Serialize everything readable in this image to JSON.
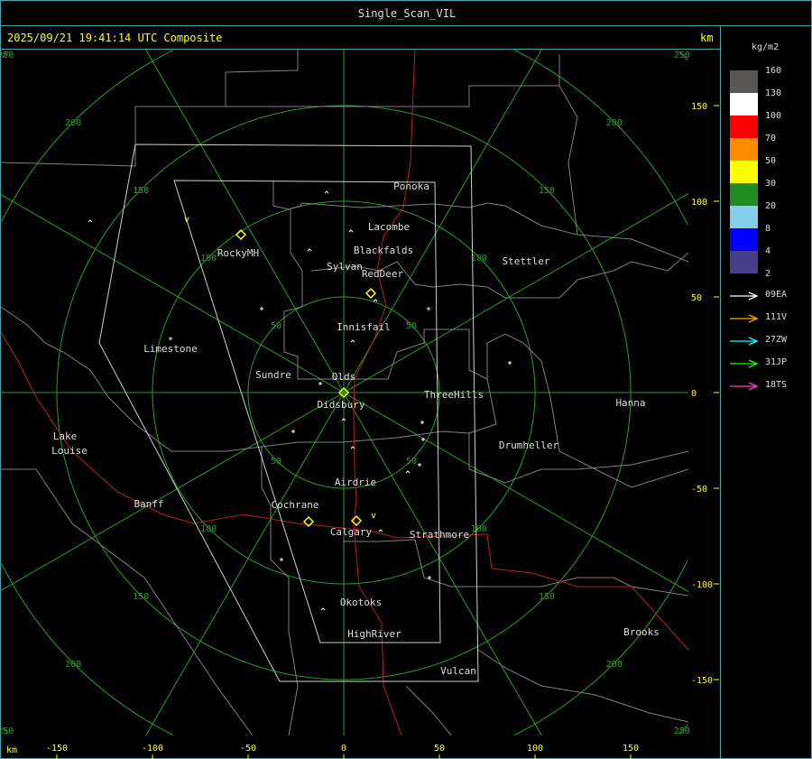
{
  "window": {
    "title": "Single_Scan_VIL"
  },
  "header": {
    "timestamp": "2025/09/21 19:41:14 UTC Composite",
    "unit": "km"
  },
  "axes": {
    "x_unit": "km",
    "x_ticks": [
      "-150",
      "-100",
      "-50",
      "0",
      "50",
      "100",
      "150"
    ],
    "y_ticks": [
      "150",
      "100",
      "50",
      "0",
      "-50",
      "-100",
      "-150"
    ],
    "range_rings": [
      "50",
      "100",
      "150",
      "200",
      "250"
    ]
  },
  "legend": {
    "unit": "kg/m2",
    "scale": [
      {
        "label": "160",
        "color": "#595656"
      },
      {
        "label": "130",
        "color": "#ffffff"
      },
      {
        "label": "100",
        "color": "#ff0000"
      },
      {
        "label": "70",
        "color": "#ff8c00"
      },
      {
        "label": "50",
        "color": "#ffff00"
      },
      {
        "label": "30",
        "color": "#228b22"
      },
      {
        "label": "20",
        "color": "#87ceeb"
      },
      {
        "label": "8",
        "color": "#0000ff"
      },
      {
        "label": "4",
        "color": "#483d8b"
      },
      {
        "label": "2",
        "color": ""
      }
    ],
    "radars": [
      {
        "label": "09EA",
        "color": "#ffffff"
      },
      {
        "label": "111V",
        "color": "#ffa500"
      },
      {
        "label": "27ZW",
        "color": "#00ffff"
      },
      {
        "label": "31JP",
        "color": "#00ff00"
      },
      {
        "label": "18TS",
        "color": "#ff33cc"
      }
    ]
  },
  "cities": [
    {
      "name": "Ponoka"
    },
    {
      "name": "Lacombe"
    },
    {
      "name": "Blackfalds"
    },
    {
      "name": "Sylvan"
    },
    {
      "name": "RedDeer"
    },
    {
      "name": "RockyMH"
    },
    {
      "name": "Stettler"
    },
    {
      "name": "Innisfail"
    },
    {
      "name": "Limestone"
    },
    {
      "name": "Sundre"
    },
    {
      "name": "Olds"
    },
    {
      "name": "Didsbury"
    },
    {
      "name": "ThreeHills"
    },
    {
      "name": "Hanna"
    },
    {
      "name": "Lake"
    },
    {
      "name": "Louise"
    },
    {
      "name": "Drumheller"
    },
    {
      "name": "Airdrie"
    },
    {
      "name": "Banff"
    },
    {
      "name": "Cochrane"
    },
    {
      "name": "Calgary"
    },
    {
      "name": "Strathmore"
    },
    {
      "name": "Okotoks"
    },
    {
      "name": "HighRiver"
    },
    {
      "name": "Brooks"
    },
    {
      "name": "Vulcan"
    }
  ],
  "colors": {
    "frame": "#4aa3a8",
    "grid": "#2a9a2a",
    "boundary": "#808080",
    "highway": "#b22222",
    "domain": "#d0d0d0",
    "marker": "#ffff00"
  }
}
